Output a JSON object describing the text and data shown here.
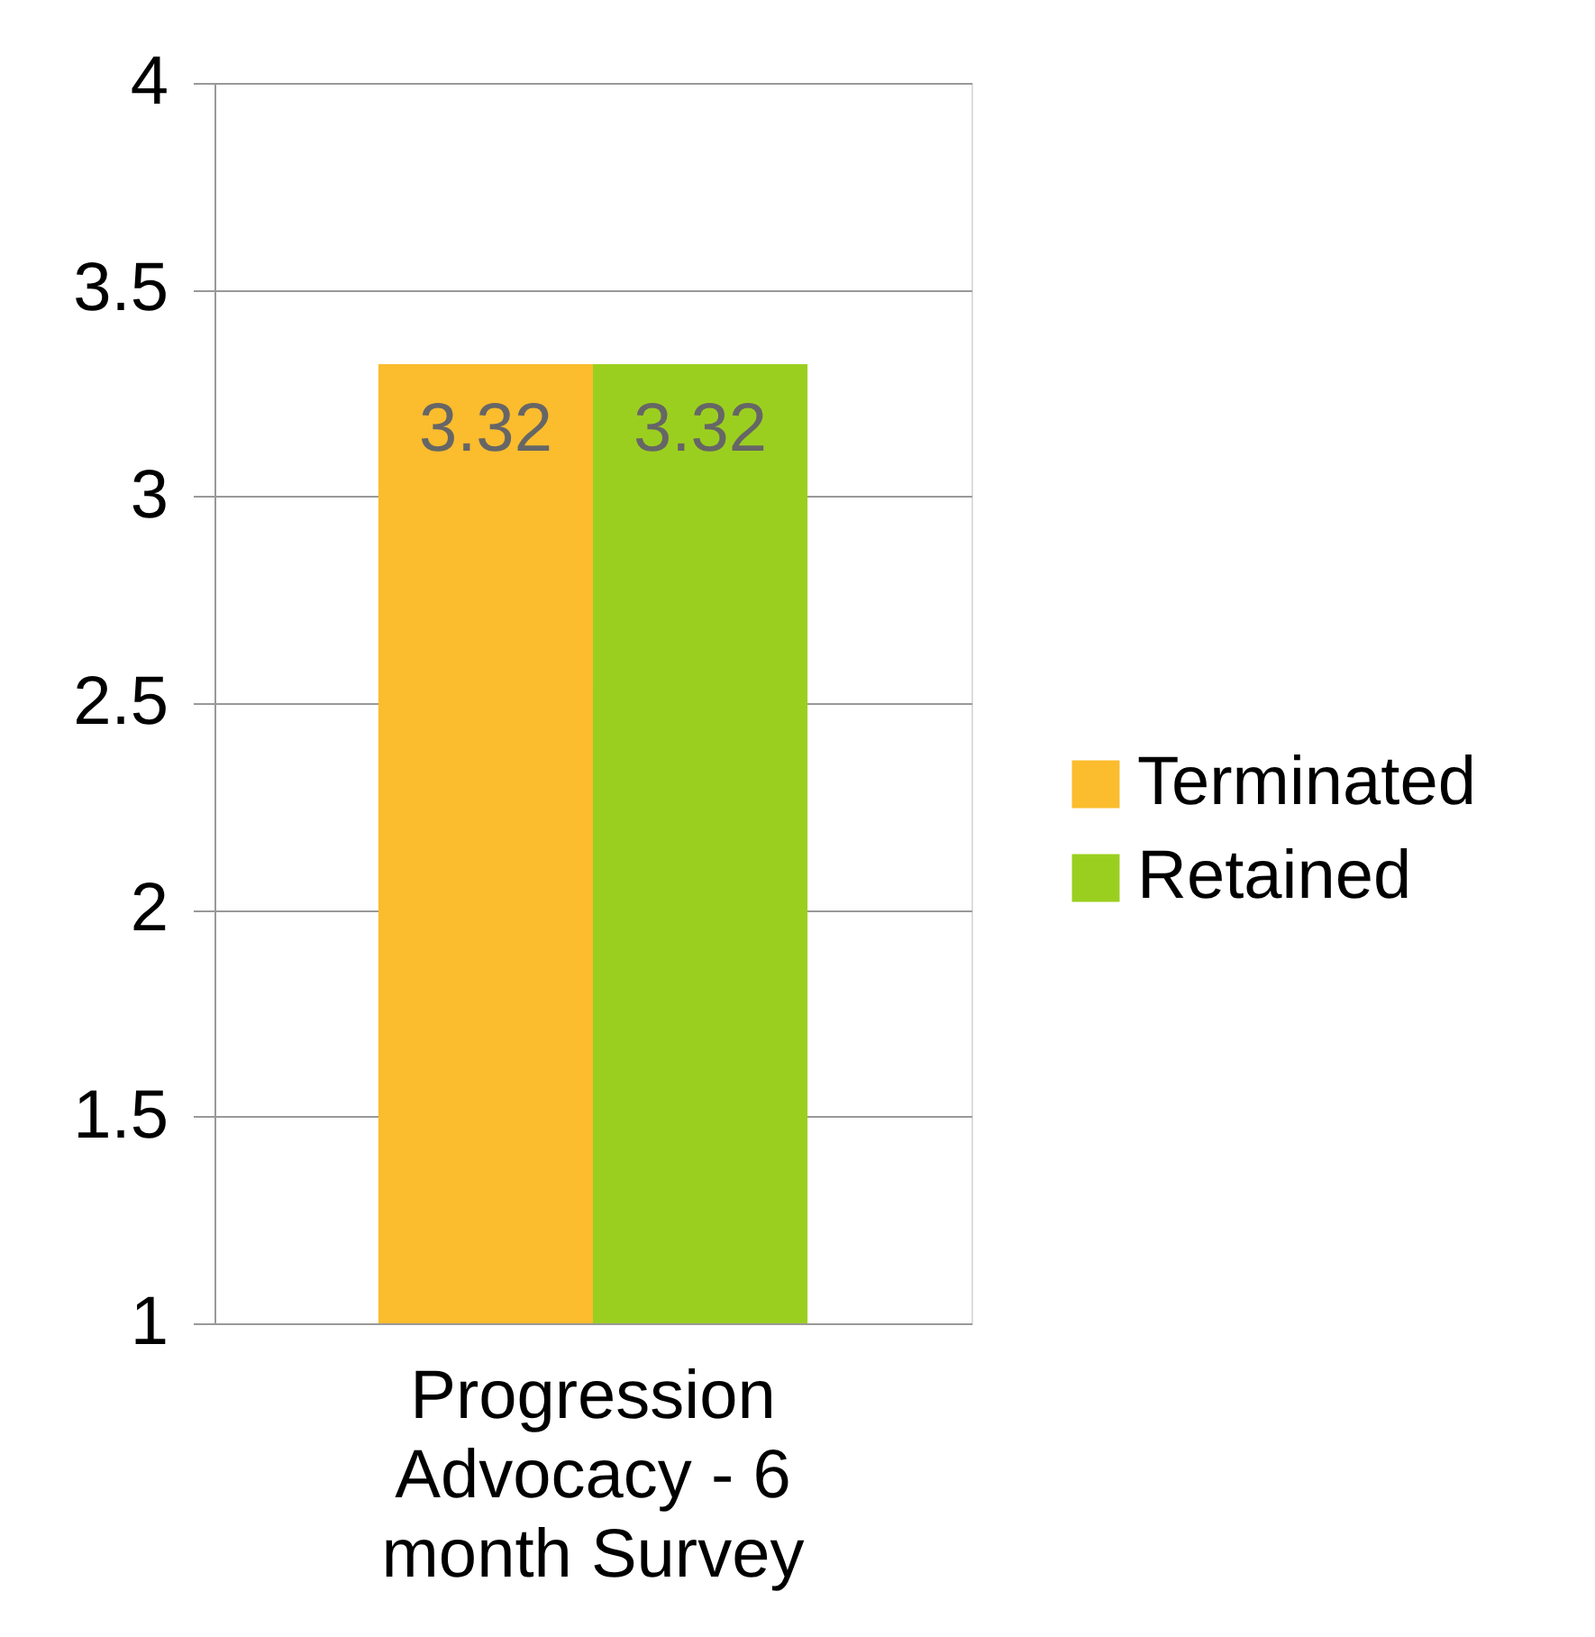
{
  "chart_data": {
    "type": "bar",
    "categories": [
      "Progression Advocacy - 6 month Survey"
    ],
    "series": [
      {
        "name": "Terminated",
        "color": "#fbbc2d",
        "values": [
          3.32
        ]
      },
      {
        "name": "Retained",
        "color": "#9bcf1f",
        "values": [
          3.32
        ]
      }
    ],
    "ylim": [
      1,
      4
    ],
    "yticks": [
      1,
      1.5,
      2,
      2.5,
      3,
      3.5,
      4
    ],
    "grid": "y",
    "legend": "right",
    "data_labels": true
  }
}
